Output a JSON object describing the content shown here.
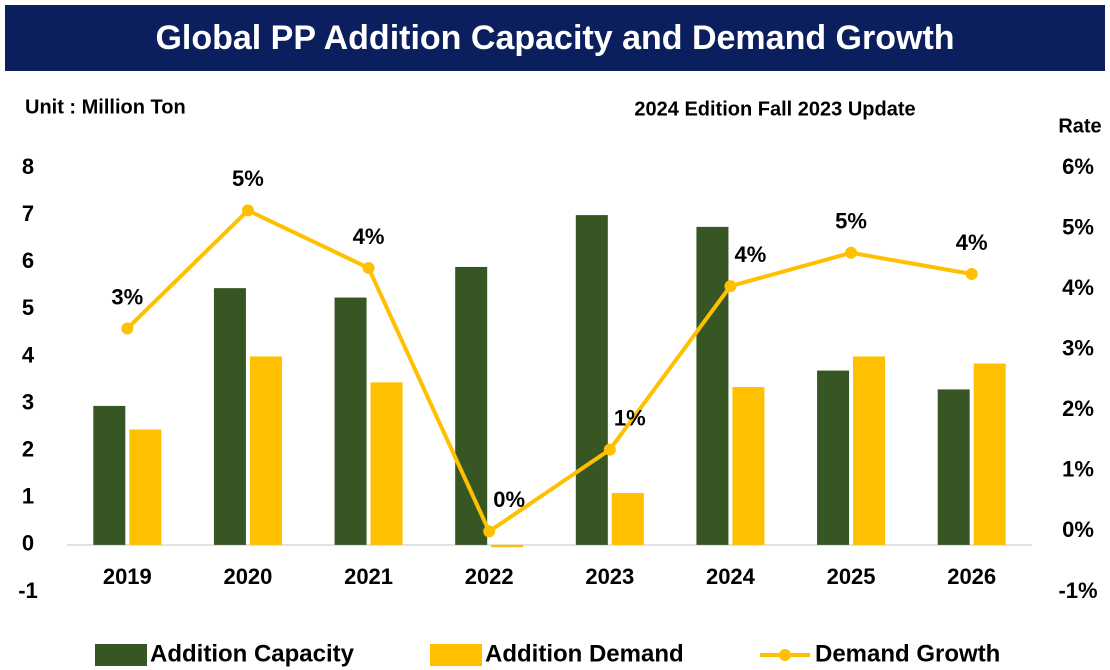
{
  "chart_data": {
    "type": "bar_line",
    "title": "Global PP Addition Capacity and Demand Growth",
    "subtitle": "2024 Edition Fall 2023 Update",
    "y_label": "Unit : Million Ton",
    "y2_label": "Rate",
    "categories": [
      "2019",
      "2020",
      "2021",
      "2022",
      "2023",
      "2024",
      "2025",
      "2026"
    ],
    "series": [
      {
        "name": "Addition Capacity",
        "type": "bar",
        "color": "#375623",
        "values": [
          2.95,
          5.45,
          5.25,
          5.9,
          7.0,
          6.75,
          3.7,
          3.3
        ]
      },
      {
        "name": "Addition Demand",
        "type": "bar",
        "color": "#ffc000",
        "values": [
          2.45,
          4.0,
          3.45,
          -0.05,
          1.1,
          3.35,
          4.0,
          3.85
        ]
      },
      {
        "name": "Demand Growth",
        "type": "line",
        "axis": "y2",
        "color": "#ffc000",
        "values": [
          3.35,
          5.3,
          4.35,
          0,
          1.35,
          4.05,
          4.6,
          4.25
        ],
        "value_labels": [
          "3%",
          "5%",
          "4%",
          "0%",
          "1%",
          "4%",
          "5%",
          "4%"
        ]
      }
    ],
    "ylim": [
      -1,
      8
    ],
    "yticks": [
      -1,
      0,
      1,
      2,
      3,
      4,
      5,
      6,
      7,
      8
    ],
    "y2lim": [
      -1,
      6
    ],
    "y2ticks": [
      {
        "value": -1,
        "label": "-1%"
      },
      {
        "value": 0,
        "label": "0%"
      },
      {
        "value": 1,
        "label": "1%"
      },
      {
        "value": 2,
        "label": "2%"
      },
      {
        "value": 3,
        "label": "3%"
      },
      {
        "value": 4,
        "label": "4%"
      },
      {
        "value": 5,
        "label": "5%"
      },
      {
        "value": 6,
        "label": "6%"
      }
    ],
    "grid": false,
    "legend": "bottom"
  }
}
